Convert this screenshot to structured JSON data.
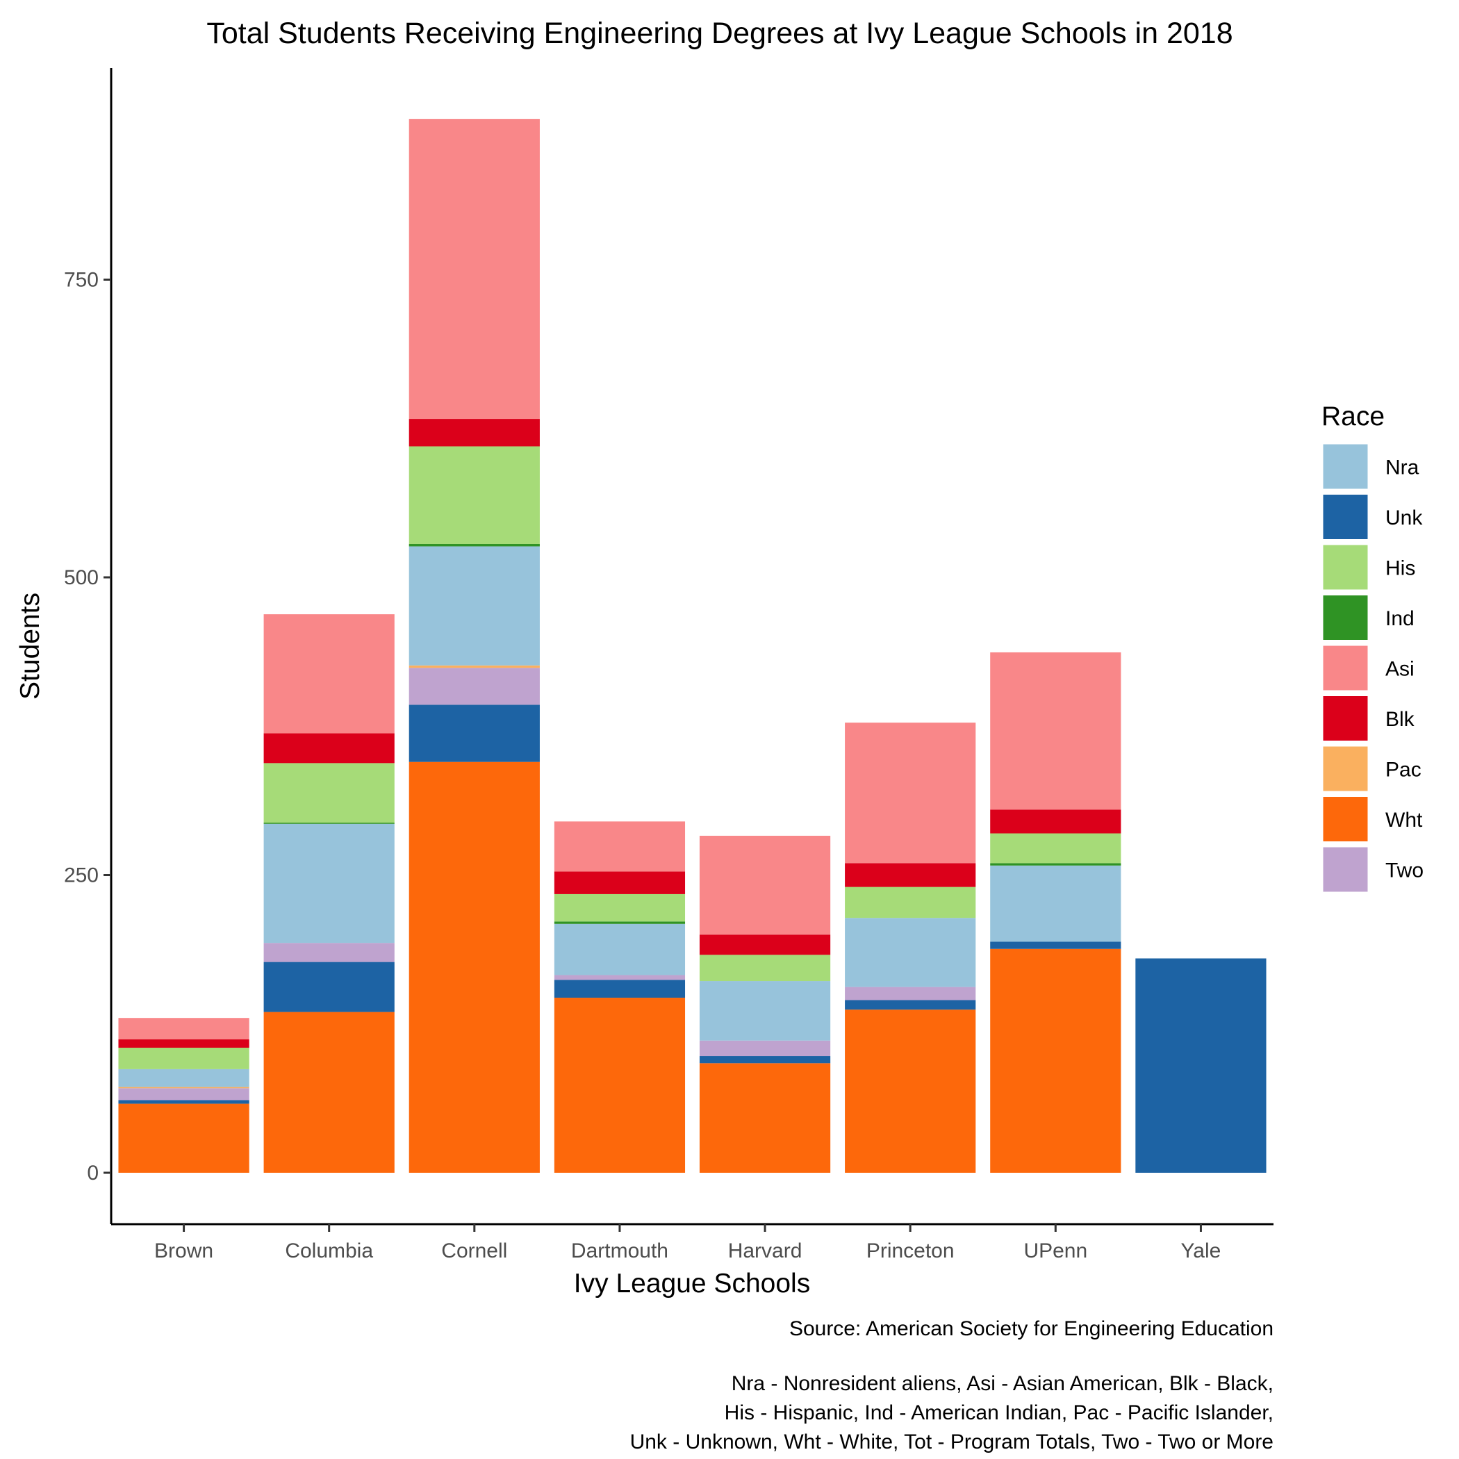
{
  "chart_data": {
    "type": "bar",
    "stacked": true,
    "title": "Total Students Receiving Engineering Degrees at Ivy League Schools in 2018",
    "xlabel": "Ivy League Schools",
    "ylabel": "Students",
    "ylim": [
      -45,
      930
    ],
    "yticks": [
      0,
      250,
      500,
      750
    ],
    "grid": false,
    "categories": [
      "Brown",
      "Columbia",
      "Cornell",
      "Dartmouth",
      "Harvard",
      "Princeton",
      "UPenn",
      "Yale"
    ],
    "stack_order": [
      "Wht",
      "Unk",
      "Two",
      "Pac",
      "Nra",
      "Ind",
      "His",
      "Blk",
      "Asi"
    ],
    "series": [
      {
        "name": "Nra",
        "color": "#97C3DB",
        "values": [
          15,
          100,
          100,
          43,
          50,
          58,
          64,
          0
        ]
      },
      {
        "name": "Unk",
        "color": "#1D63A4",
        "values": [
          3,
          42,
          48,
          15,
          6,
          8,
          6,
          180
        ]
      },
      {
        "name": "His",
        "color": "#A6DB78",
        "values": [
          18,
          50,
          82,
          23,
          22,
          26,
          25,
          0
        ]
      },
      {
        "name": "Ind",
        "color": "#2F9324",
        "values": [
          0,
          1,
          2,
          2,
          0,
          0,
          2,
          0
        ]
      },
      {
        "name": "Asi",
        "color": "#F98789",
        "values": [
          18,
          100,
          252,
          42,
          83,
          118,
          132,
          0
        ]
      },
      {
        "name": "Blk",
        "color": "#DB001A",
        "values": [
          7,
          25,
          23,
          19,
          17,
          20,
          20,
          0
        ]
      },
      {
        "name": "Pac",
        "color": "#FAB05F",
        "values": [
          1,
          0,
          2,
          0,
          0,
          0,
          0,
          0
        ]
      },
      {
        "name": "Wht",
        "color": "#FD680B",
        "values": [
          58,
          135,
          345,
          147,
          92,
          137,
          188,
          0
        ]
      },
      {
        "name": "Two",
        "color": "#BFA3CF",
        "values": [
          10,
          16,
          31,
          4,
          13,
          11,
          0,
          0
        ]
      }
    ],
    "legend": {
      "title": "Race",
      "position": "right",
      "entries": [
        "Nra",
        "Unk",
        "His",
        "Ind",
        "Asi",
        "Blk",
        "Pac",
        "Wht",
        "Two"
      ]
    },
    "caption": [
      "Source: American Society for Engineering Education",
      "",
      "Nra - Nonresident aliens, Asi - Asian American, Blk - Black,",
      "His - Hispanic, Ind - American Indian, Pac - Pacific Islander,",
      "Unk - Unknown, Wht - White, Tot - Program Totals, Two - Two or More"
    ]
  }
}
